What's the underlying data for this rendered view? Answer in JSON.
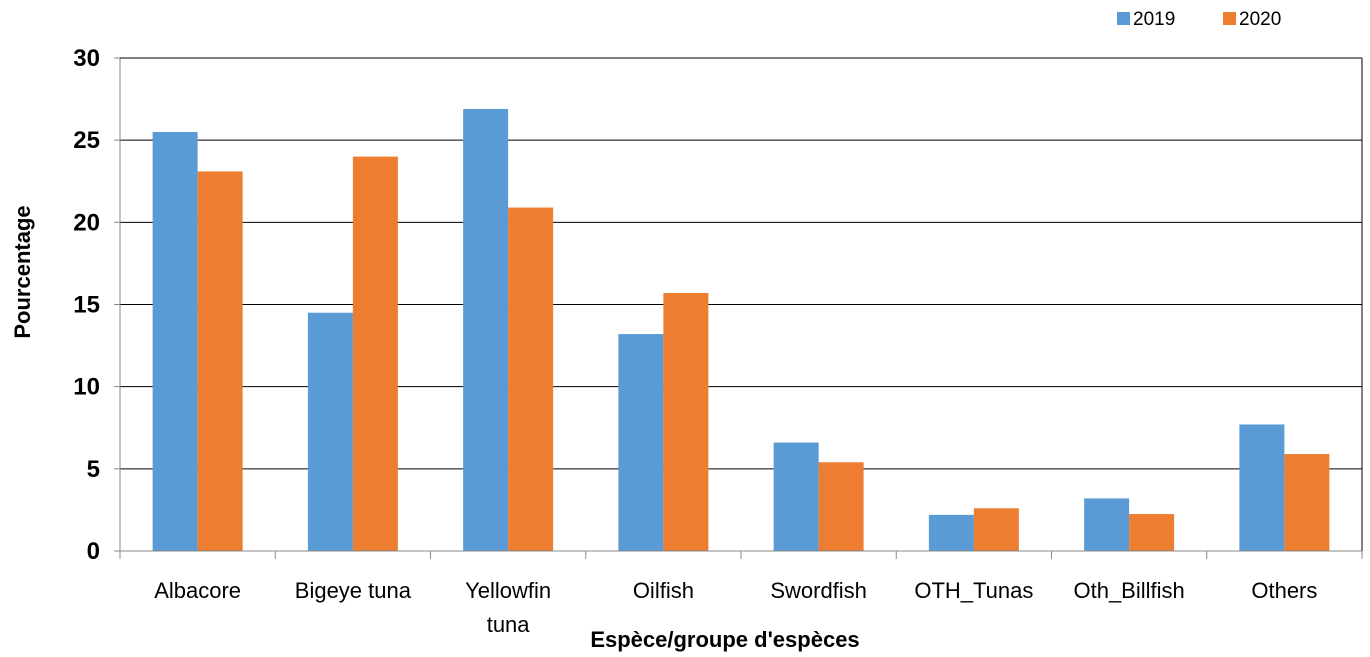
{
  "chart_data": {
    "type": "bar",
    "title": "",
    "xlabel": "Espèce/groupe d'espèces",
    "ylabel": "Pourcentage",
    "ylim": [
      0,
      30
    ],
    "yticks": [
      "0",
      "5",
      "10",
      "15",
      "20",
      "25",
      "30"
    ],
    "grid": true,
    "legend_position": "top-right",
    "categories": [
      [
        "Albacore"
      ],
      [
        "Bigeye tuna"
      ],
      [
        "Yellowfin",
        "tuna"
      ],
      [
        "Oilfish"
      ],
      [
        "Swordfish"
      ],
      [
        "OTH_Tunas"
      ],
      [
        "Oth_Billfish"
      ],
      [
        "Others"
      ]
    ],
    "series": [
      {
        "name": "2019",
        "color": "#5b9bd5",
        "values": [
          25.5,
          14.5,
          26.9,
          13.2,
          6.6,
          2.2,
          3.2,
          7.7
        ]
      },
      {
        "name": "2020",
        "color": "#ed7d31",
        "values": [
          23.1,
          24.0,
          20.9,
          15.7,
          5.4,
          2.6,
          2.25,
          5.9
        ]
      }
    ]
  }
}
